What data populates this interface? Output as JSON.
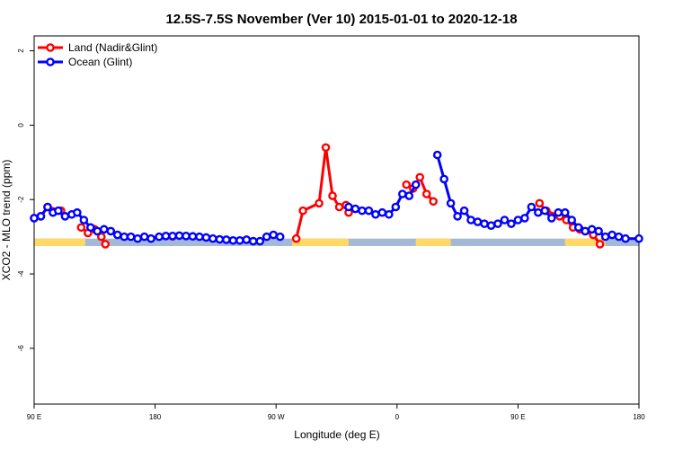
{
  "chart_data": {
    "type": "line",
    "title": "12.5S-7.5S November (Ver 10)   2015-01-01 to 2020-12-18",
    "xlabel": "Longitude (deg E)",
    "ylabel": "XCO2 - MLO trend (ppm)",
    "x_ticks": [
      {
        "value": 90,
        "label": "90 E"
      },
      {
        "value": 180,
        "label": "180"
      },
      {
        "value": 270,
        "label": "90 W"
      },
      {
        "value": 360,
        "label": "0"
      },
      {
        "value": 450,
        "label": "90 E"
      },
      {
        "value": 540,
        "label": "180"
      }
    ],
    "y_ticks": [
      {
        "value": 2,
        "label": "2"
      },
      {
        "value": 0,
        "label": "0"
      },
      {
        "value": -2,
        "label": "-2"
      },
      {
        "value": -4,
        "label": "-4"
      },
      {
        "value": -6,
        "label": "-6"
      }
    ],
    "xlim": [
      90,
      540
    ],
    "ylim": [
      -7.5,
      2.4
    ],
    "grid": false,
    "legend_position": "top-left",
    "surface_band": {
      "y_range": [
        -3.05,
        -3.25
      ],
      "ocean_color": "#a4b9d6",
      "land_color": "#ffd966",
      "land_segments": [
        [
          90,
          128
        ],
        [
          282,
          324
        ],
        [
          374,
          400
        ],
        [
          485,
          515
        ]
      ]
    },
    "series": [
      {
        "name": "Land (Nadir&Glint)",
        "color": "#ff0000",
        "points": [
          [
            90,
            -2.5
          ],
          [
            95,
            -2.45
          ],
          [
            100,
            -2.2
          ],
          [
            110,
            -2.3
          ],
          [
            125,
            -2.75
          ],
          [
            130,
            -2.9
          ],
          [
            135,
            -2.8
          ],
          [
            140,
            -3.0
          ],
          [
            143,
            -3.2
          ],
          [
            193,
            -2.99
          ],
          [
            285,
            -3.05
          ],
          [
            290,
            -2.3
          ],
          [
            302,
            -2.1
          ],
          [
            307,
            -0.6
          ],
          [
            312,
            -1.9
          ],
          [
            317,
            -2.2
          ],
          [
            322,
            -2.15
          ],
          [
            324,
            -2.35
          ],
          [
            367,
            -1.6
          ],
          [
            372,
            -1.7
          ],
          [
            377,
            -1.4
          ],
          [
            382,
            -1.85
          ],
          [
            387,
            -2.05
          ],
          [
            466,
            -2.1
          ],
          [
            471,
            -2.3
          ],
          [
            481,
            -2.45
          ],
          [
            486,
            -2.55
          ],
          [
            491,
            -2.75
          ],
          [
            496,
            -2.8
          ],
          [
            506,
            -2.95
          ],
          [
            511,
            -3.2
          ]
        ]
      },
      {
        "name": "Ocean (Glint)",
        "color": "#0000ff",
        "points": [
          [
            90,
            -2.5
          ],
          [
            95,
            -2.45
          ],
          [
            100,
            -2.2
          ],
          [
            104,
            -2.35
          ],
          [
            108,
            -2.3
          ],
          [
            113,
            -2.45
          ],
          [
            118,
            -2.4
          ],
          [
            122,
            -2.35
          ],
          [
            127,
            -2.55
          ],
          [
            132,
            -2.75
          ],
          [
            137,
            -2.85
          ],
          [
            142,
            -2.8
          ],
          [
            147,
            -2.85
          ],
          [
            152,
            -2.95
          ],
          [
            157,
            -3.0
          ],
          [
            162,
            -3.0
          ],
          [
            167,
            -3.05
          ],
          [
            172,
            -3.0
          ],
          [
            177,
            -3.05
          ],
          [
            183,
            -3.0
          ],
          [
            188,
            -2.98
          ],
          [
            193,
            -2.98
          ],
          [
            198,
            -2.97
          ],
          [
            203,
            -2.98
          ],
          [
            208,
            -2.99
          ],
          [
            213,
            -3.0
          ],
          [
            218,
            -3.02
          ],
          [
            223,
            -3.05
          ],
          [
            228,
            -3.07
          ],
          [
            233,
            -3.08
          ],
          [
            238,
            -3.1
          ],
          [
            243,
            -3.1
          ],
          [
            248,
            -3.08
          ],
          [
            253,
            -3.12
          ],
          [
            258,
            -3.12
          ],
          [
            263,
            -3.0
          ],
          [
            268,
            -2.95
          ],
          [
            273,
            -3.0
          ],
          [
            324,
            -2.2
          ],
          [
            329,
            -2.25
          ],
          [
            334,
            -2.3
          ],
          [
            339,
            -2.3
          ],
          [
            344,
            -2.4
          ],
          [
            349,
            -2.35
          ],
          [
            354,
            -2.4
          ],
          [
            359,
            -2.2
          ],
          [
            364,
            -1.85
          ],
          [
            369,
            -1.9
          ],
          [
            374,
            -1.6
          ],
          [
            390,
            -0.8
          ],
          [
            395,
            -1.45
          ],
          [
            400,
            -2.1
          ],
          [
            405,
            -2.45
          ],
          [
            410,
            -2.3
          ],
          [
            415,
            -2.55
          ],
          [
            420,
            -2.6
          ],
          [
            425,
            -2.65
          ],
          [
            430,
            -2.7
          ],
          [
            435,
            -2.65
          ],
          [
            440,
            -2.55
          ],
          [
            445,
            -2.65
          ],
          [
            450,
            -2.55
          ],
          [
            455,
            -2.5
          ],
          [
            460,
            -2.2
          ],
          [
            465,
            -2.35
          ],
          [
            470,
            -2.3
          ],
          [
            475,
            -2.5
          ],
          [
            480,
            -2.35
          ],
          [
            485,
            -2.35
          ],
          [
            490,
            -2.55
          ],
          [
            495,
            -2.75
          ],
          [
            500,
            -2.85
          ],
          [
            505,
            -2.8
          ],
          [
            510,
            -2.85
          ],
          [
            515,
            -3.0
          ],
          [
            520,
            -2.95
          ],
          [
            525,
            -3.0
          ],
          [
            530,
            -3.05
          ],
          [
            540,
            -3.05
          ]
        ]
      }
    ]
  }
}
